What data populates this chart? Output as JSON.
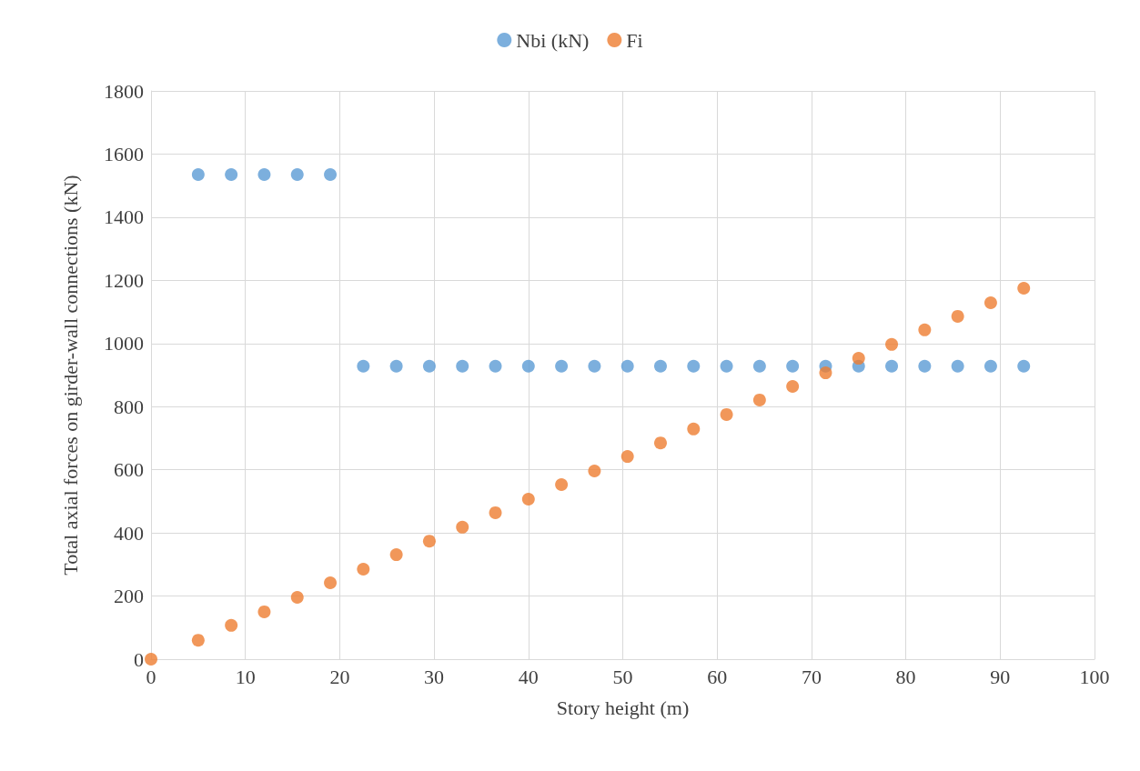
{
  "chart_data": {
    "type": "scatter",
    "xlabel": "Story height (m)",
    "ylabel": "Total axial forces on girder-wall connections (kN)",
    "series": [
      {
        "name": "Nbi (kN)",
        "color": "#5b9bd5",
        "x": [
          5,
          8.5,
          12,
          15.5,
          19,
          22.5,
          26,
          29.5,
          33,
          36.5,
          40,
          43.5,
          47,
          50.5,
          54,
          57.5,
          61,
          64.5,
          68,
          71.5,
          75,
          78.5,
          82,
          85.5,
          89,
          92.5
        ],
        "values": [
          1535,
          1535,
          1535,
          1535,
          1535,
          928,
          928,
          928,
          928,
          928,
          928,
          928,
          928,
          928,
          928,
          928,
          928,
          928,
          928,
          928,
          928,
          928,
          928,
          928,
          928,
          928
        ]
      },
      {
        "name": "Fi",
        "color": "#ed7d31",
        "x": [
          0,
          5,
          8.5,
          12,
          15.5,
          19,
          22.5,
          26,
          29.5,
          33,
          36.5,
          40,
          43.5,
          47,
          50.5,
          54,
          57.5,
          61,
          64.5,
          68,
          71.5,
          75,
          78.5,
          82,
          85.5,
          89,
          92.5
        ],
        "values": [
          0,
          60,
          107,
          150,
          196,
          242,
          285,
          331,
          374,
          418,
          464,
          507,
          553,
          596,
          642,
          685,
          729,
          775,
          821,
          864,
          907,
          953,
          997,
          1043,
          1086,
          1129,
          1175
        ]
      }
    ],
    "xlim": [
      0,
      100
    ],
    "xticks": [
      0,
      10,
      20,
      30,
      40,
      50,
      60,
      70,
      80,
      90,
      100
    ],
    "ylim": [
      0,
      1800
    ],
    "yticks": [
      0,
      200,
      400,
      600,
      800,
      1000,
      1200,
      1400,
      1600,
      1800
    ],
    "grid": true,
    "legend": "top",
    "marker": "circle"
  }
}
